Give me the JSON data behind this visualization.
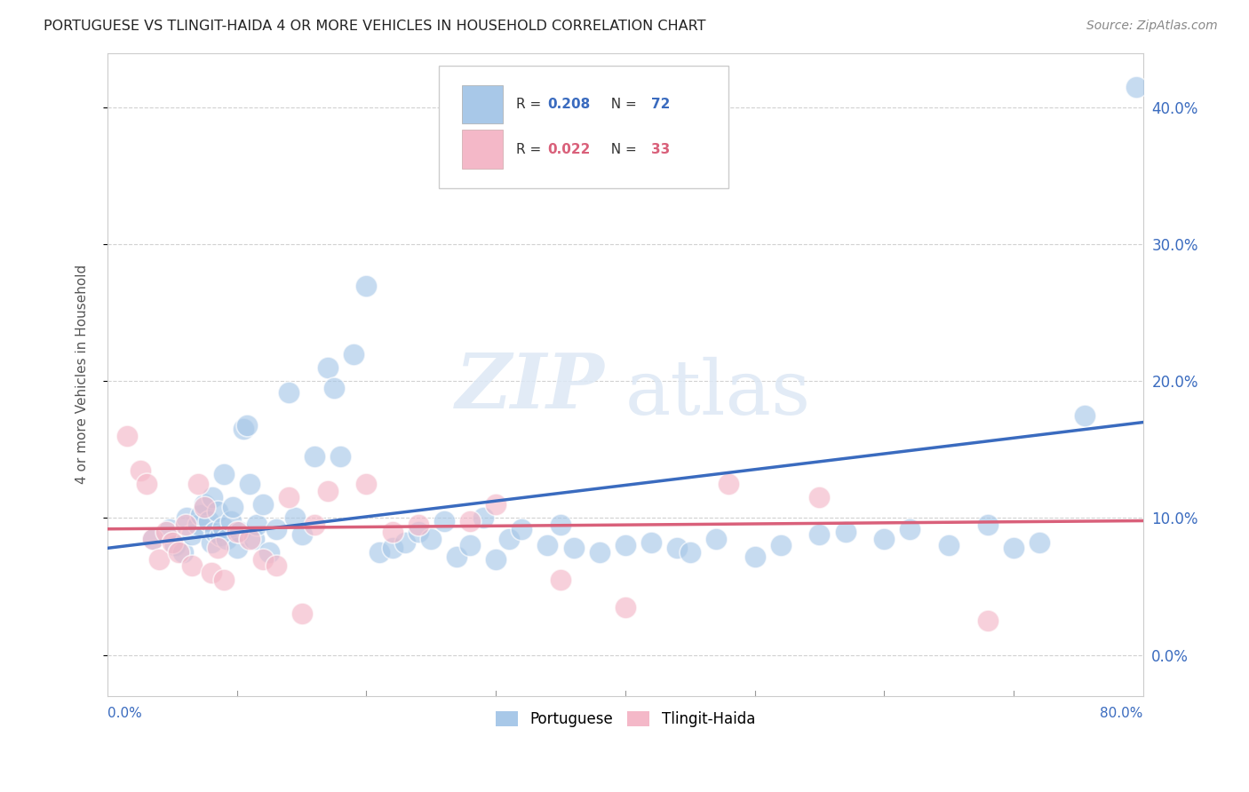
{
  "title": "PORTUGUESE VS TLINGIT-HAIDA 4 OR MORE VEHICLES IN HOUSEHOLD CORRELATION CHART",
  "source": "Source: ZipAtlas.com",
  "ylabel": "4 or more Vehicles in Household",
  "blue_label": "Portuguese",
  "pink_label": "Tlingit-Haida",
  "blue_color": "#a8c8e8",
  "pink_color": "#f4b8c8",
  "blue_line_color": "#3a6bbf",
  "pink_line_color": "#d9607a",
  "legend_text_blue_r": "0.208",
  "legend_text_pink_r": "0.022",
  "legend_text_blue_n": "72",
  "legend_text_pink_n": "33",
  "watermark_zip": "ZIP",
  "watermark_atlas": "atlas",
  "xmin": 0.0,
  "xmax": 80.0,
  "ymin": -3.0,
  "ymax": 44.0,
  "yticks": [
    0,
    10,
    20,
    30,
    40
  ],
  "ytick_labels": [
    "0.0%",
    "10.0%",
    "20.0%",
    "30.0%",
    "40.0%"
  ],
  "xtick_labels_show": [
    "0.0%",
    "80.0%"
  ],
  "blue_x": [
    3.5,
    4.8,
    5.2,
    5.8,
    6.1,
    6.5,
    7.0,
    7.2,
    7.5,
    7.8,
    8.0,
    8.1,
    8.3,
    8.5,
    8.7,
    8.9,
    9.0,
    9.2,
    9.5,
    9.7,
    10.0,
    10.2,
    10.5,
    10.8,
    11.0,
    11.3,
    11.5,
    12.0,
    12.5,
    13.0,
    14.0,
    14.5,
    15.0,
    16.0,
    17.0,
    17.5,
    18.0,
    19.0,
    20.0,
    21.0,
    22.0,
    23.0,
    24.0,
    25.0,
    26.0,
    27.0,
    28.0,
    29.0,
    30.0,
    31.0,
    32.0,
    34.0,
    35.0,
    36.0,
    38.0,
    40.0,
    42.0,
    44.0,
    45.0,
    47.0,
    50.0,
    52.0,
    55.0,
    57.0,
    60.0,
    62.0,
    65.0,
    68.0,
    70.0,
    72.0,
    75.5,
    79.5
  ],
  "blue_y": [
    8.5,
    9.2,
    8.0,
    7.5,
    10.0,
    8.8,
    9.5,
    10.2,
    11.0,
    9.8,
    8.2,
    11.5,
    9.0,
    10.5,
    8.7,
    9.3,
    13.2,
    8.5,
    9.8,
    10.8,
    7.8,
    9.0,
    16.5,
    16.8,
    12.5,
    8.5,
    9.5,
    11.0,
    7.5,
    9.2,
    19.2,
    10.0,
    8.8,
    14.5,
    21.0,
    19.5,
    14.5,
    22.0,
    27.0,
    7.5,
    7.8,
    8.2,
    9.0,
    8.5,
    9.8,
    7.2,
    8.0,
    10.0,
    7.0,
    8.5,
    9.2,
    8.0,
    9.5,
    7.8,
    7.5,
    8.0,
    8.2,
    7.8,
    7.5,
    8.5,
    7.2,
    8.0,
    8.8,
    9.0,
    8.5,
    9.2,
    8.0,
    9.5,
    7.8,
    8.2,
    17.5,
    41.5
  ],
  "pink_x": [
    1.5,
    2.5,
    3.0,
    3.5,
    4.0,
    4.5,
    5.0,
    5.5,
    6.0,
    6.5,
    7.0,
    7.5,
    8.0,
    8.5,
    9.0,
    10.0,
    11.0,
    12.0,
    13.0,
    14.0,
    15.0,
    16.0,
    17.0,
    20.0,
    22.0,
    24.0,
    28.0,
    30.0,
    35.0,
    40.0,
    48.0,
    55.0,
    68.0
  ],
  "pink_y": [
    16.0,
    13.5,
    12.5,
    8.5,
    7.0,
    9.0,
    8.2,
    7.5,
    9.5,
    6.5,
    12.5,
    10.8,
    6.0,
    7.8,
    5.5,
    9.0,
    8.5,
    7.0,
    6.5,
    11.5,
    3.0,
    9.5,
    12.0,
    12.5,
    9.0,
    9.5,
    9.8,
    11.0,
    5.5,
    3.5,
    12.5,
    11.5,
    2.5
  ],
  "blue_line_start_y": 7.8,
  "blue_line_end_y": 17.0,
  "pink_line_start_y": 9.2,
  "pink_line_end_y": 9.8
}
